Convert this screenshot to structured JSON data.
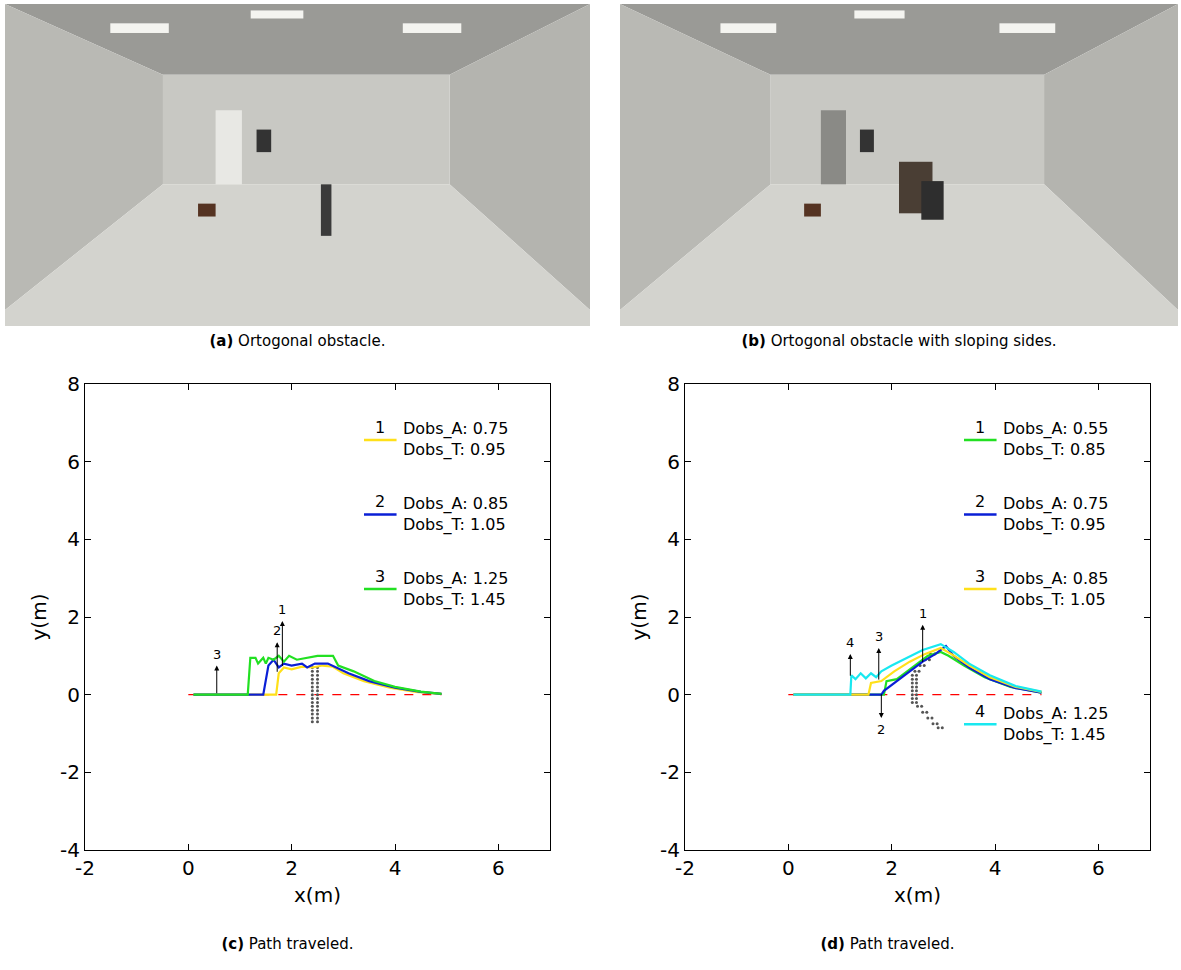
{
  "photos": [
    {
      "letter": "(a)",
      "caption": "Ortogonal obstacle."
    },
    {
      "letter": "(b)",
      "caption": "Ortogonal obstacle with sloping sides."
    }
  ],
  "chart_data": [
    {
      "type": "line",
      "letter": "(c)",
      "caption": "Path traveled.",
      "x_label": "x(m)",
      "y_label": "y(m)",
      "xlim": [
        -2,
        7
      ],
      "xticks": [
        -2,
        0,
        2,
        4,
        6
      ],
      "ylim": [
        -4,
        8
      ],
      "yticks": [
        -4,
        -2,
        0,
        2,
        4,
        6,
        8
      ],
      "grid": false,
      "legend": "upper right",
      "series": [
        {
          "name": "1",
          "legend_text": [
            "Dobs_A: 0.75",
            "Dobs_T: 0.95"
          ],
          "color": "#ffe019",
          "x": [
            0.1,
            1.7,
            1.75,
            1.85,
            2.0,
            2.2,
            2.4,
            2.6,
            2.8,
            3.0,
            3.4,
            3.9,
            4.4,
            4.9
          ],
          "values": [
            0,
            0,
            0.55,
            0.7,
            0.65,
            0.72,
            0.7,
            0.75,
            0.72,
            0.55,
            0.35,
            0.18,
            0.07,
            0.02
          ]
        },
        {
          "name": "2",
          "legend_text": [
            "Dobs_A: 0.85",
            "Dobs_T: 1.05"
          ],
          "color": "#0a1fd6",
          "x": [
            0.1,
            1.45,
            1.55,
            1.65,
            1.75,
            1.85,
            2.0,
            2.2,
            2.3,
            2.45,
            2.7,
            2.85,
            3.1,
            3.5,
            4.0,
            4.5,
            4.9
          ],
          "values": [
            0,
            0,
            0.75,
            0.9,
            0.7,
            0.8,
            0.75,
            0.8,
            0.7,
            0.8,
            0.8,
            0.7,
            0.55,
            0.35,
            0.18,
            0.07,
            0.02
          ]
        },
        {
          "name": "3",
          "legend_text": [
            "Dobs_A: 1.25",
            "Dobs_T: 1.45"
          ],
          "color": "#22e022",
          "x": [
            0.1,
            0.6,
            1.15,
            1.2,
            1.3,
            1.35,
            1.45,
            1.5,
            1.55,
            1.65,
            1.75,
            1.85,
            1.95,
            2.1,
            2.3,
            2.5,
            2.8,
            2.9,
            3.2,
            3.6,
            4.0,
            4.5,
            4.9
          ],
          "values": [
            0,
            0,
            0,
            0.95,
            0.95,
            0.8,
            0.95,
            0.8,
            0.95,
            0.9,
            1.0,
            0.85,
            1.0,
            0.9,
            0.95,
            1.0,
            1.0,
            0.75,
            0.6,
            0.35,
            0.2,
            0.08,
            0.02
          ]
        }
      ],
      "reference_line": {
        "x": [
          0,
          4.9
        ],
        "y": [
          0,
          0
        ],
        "color": "#ff0000",
        "line_style": "dashed"
      },
      "obstacle": {
        "color": "#555555",
        "marker": "dot",
        "x": [
          2.4,
          2.4,
          2.4,
          2.4,
          2.4,
          2.4,
          2.4,
          2.4,
          2.4,
          2.4,
          2.4,
          2.4,
          2.4,
          2.4,
          2.4,
          2.5,
          2.5,
          2.5,
          2.5,
          2.5,
          2.5,
          2.5,
          2.5,
          2.5,
          2.5,
          2.5,
          2.5,
          2.5,
          2.5,
          2.5
        ],
        "y": [
          -0.7,
          -0.6,
          -0.5,
          -0.4,
          -0.3,
          -0.2,
          -0.1,
          0,
          0.1,
          0.2,
          0.3,
          0.4,
          0.5,
          0.6,
          0.7,
          -0.7,
          -0.6,
          -0.5,
          -0.4,
          -0.3,
          -0.2,
          -0.1,
          0,
          0.1,
          0.2,
          0.3,
          0.4,
          0.5,
          0.6,
          0.7
        ]
      },
      "arrows": [
        {
          "label": "3",
          "x": 0.55,
          "y0": 0,
          "y1": 0.75
        },
        {
          "label": "2",
          "x": 1.72,
          "y0": 0.55,
          "y1": 1.35
        },
        {
          "label": "1",
          "x": 1.82,
          "y0": 0.7,
          "y1": 1.9
        }
      ]
    },
    {
      "type": "line",
      "letter": "(d)",
      "caption": "Path traveled.",
      "x_label": "x(m)",
      "y_label": "y(m)",
      "xlim": [
        -2,
        7
      ],
      "xticks": [
        -2,
        0,
        2,
        4,
        6
      ],
      "ylim": [
        -4,
        8
      ],
      "yticks": [
        -4,
        -2,
        0,
        2,
        4,
        6,
        8
      ],
      "grid": false,
      "legend": "right",
      "series": [
        {
          "name": "1",
          "legend_text": [
            "Dobs_A: 0.55",
            "Dobs_T: 0.85"
          ],
          "color": "#22e022",
          "x": [
            0.1,
            1.85,
            1.9,
            2.1,
            2.3,
            2.5,
            2.7,
            2.95,
            3.1,
            3.4,
            3.8,
            4.3,
            4.9
          ],
          "values": [
            0,
            0,
            0.35,
            0.4,
            0.6,
            0.8,
            1.0,
            1.1,
            1.0,
            0.75,
            0.45,
            0.2,
            0.05
          ]
        },
        {
          "name": "2",
          "legend_text": [
            "Dobs_A: 0.75",
            "Dobs_T: 0.95"
          ],
          "color": "#0a1fd6",
          "x": [
            0.1,
            1.8,
            1.85,
            2.05,
            2.3,
            2.6,
            2.85,
            3.05,
            3.2,
            3.5,
            3.9,
            4.4,
            4.9
          ],
          "values": [
            0,
            0,
            0.1,
            0.3,
            0.55,
            0.85,
            1.05,
            1.25,
            1.0,
            0.7,
            0.4,
            0.17,
            0.05
          ]
        },
        {
          "name": "3",
          "legend_text": [
            "Dobs_A: 0.85",
            "Dobs_T: 1.05"
          ],
          "color": "#ffe019",
          "x": [
            0.1,
            1.55,
            1.6,
            1.8,
            2.05,
            2.35,
            2.65,
            2.95,
            3.15,
            3.5,
            3.9,
            4.4,
            4.9
          ],
          "values": [
            0,
            0,
            0.3,
            0.35,
            0.6,
            0.85,
            1.05,
            1.2,
            1.05,
            0.75,
            0.45,
            0.2,
            0.07
          ]
        },
        {
          "name": "4",
          "legend_text": [
            "Dobs_A: 1.25",
            "Dobs_T: 1.45"
          ],
          "color": "#19e8f0",
          "x": [
            0.1,
            1.2,
            1.22,
            1.3,
            1.4,
            1.5,
            1.6,
            1.7,
            1.8,
            2.0,
            2.3,
            2.6,
            2.95,
            3.2,
            3.5,
            3.9,
            4.4,
            4.9
          ],
          "values": [
            0,
            0,
            0.5,
            0.4,
            0.55,
            0.42,
            0.55,
            0.45,
            0.6,
            0.75,
            0.95,
            1.15,
            1.3,
            1.1,
            0.8,
            0.5,
            0.22,
            0.08
          ]
        }
      ],
      "reference_line": {
        "x": [
          0,
          4.9
        ],
        "y": [
          0,
          0
        ],
        "color": "#ff0000",
        "line_style": "dashed"
      },
      "obstacle": {
        "color": "#555555",
        "marker": "dot",
        "x": [
          2.75,
          2.65,
          2.55,
          2.45,
          2.4,
          2.4,
          2.4,
          2.4,
          2.4,
          2.4,
          2.4,
          2.4,
          2.5,
          2.6,
          2.7,
          2.8,
          2.9,
          2.83,
          2.73,
          2.63,
          2.53,
          2.48,
          2.48,
          2.48,
          2.48,
          2.48,
          2.48,
          2.48,
          2.48,
          2.58,
          2.68,
          2.78,
          2.88,
          2.98
        ],
        "y": [
          1.05,
          0.9,
          0.75,
          0.6,
          0.5,
          0.4,
          0.3,
          0.2,
          0.1,
          0,
          -0.1,
          -0.2,
          -0.3,
          -0.45,
          -0.6,
          -0.75,
          -0.85,
          1.05,
          0.9,
          0.75,
          0.6,
          0.5,
          0.4,
          0.3,
          0.2,
          0.1,
          0,
          -0.1,
          -0.2,
          -0.3,
          -0.45,
          -0.6,
          -0.75,
          -0.85
        ]
      },
      "arrows": [
        {
          "label": "4",
          "x": 1.2,
          "y0": 0.45,
          "y1": 1.05
        },
        {
          "label": "3",
          "x": 1.75,
          "y0": 0.35,
          "y1": 1.2
        },
        {
          "label": "1",
          "x": 2.6,
          "y0": 0.8,
          "y1": 1.8
        },
        {
          "label": "2",
          "x": 1.8,
          "y0": 0.05,
          "y1": -0.6
        }
      ]
    }
  ]
}
